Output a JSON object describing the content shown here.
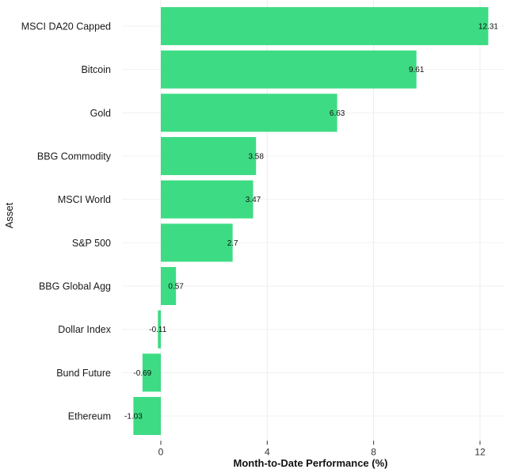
{
  "chart_data": {
    "type": "bar",
    "orientation": "horizontal",
    "categories": [
      "MSCI DA20 Capped",
      "Bitcoin",
      "Gold",
      "BBG Commodity",
      "MSCI World",
      "S&P 500",
      "BBG Global Agg",
      "Dollar Index",
      "Bund Future",
      "Ethereum"
    ],
    "values": [
      12.31,
      9.61,
      6.63,
      3.58,
      3.47,
      2.7,
      0.57,
      -0.11,
      -0.69,
      -1.03
    ],
    "data_labels": [
      "12.31",
      "9.61",
      "6.63",
      "3.58",
      "3.47",
      "2.7",
      "0.57",
      "-0.11",
      "-0.69",
      "-1.03"
    ],
    "xlabel": "Month-to-Date Performance (%)",
    "ylabel": "Asset",
    "xlim": [
      -1.45,
      12.95
    ],
    "xticks": [
      0,
      4,
      8,
      12
    ],
    "xtick_labels": [
      "0",
      "4",
      "8",
      "12"
    ],
    "bar_color": "#3ddc84",
    "grid": true,
    "grid_color": "#ececec"
  }
}
